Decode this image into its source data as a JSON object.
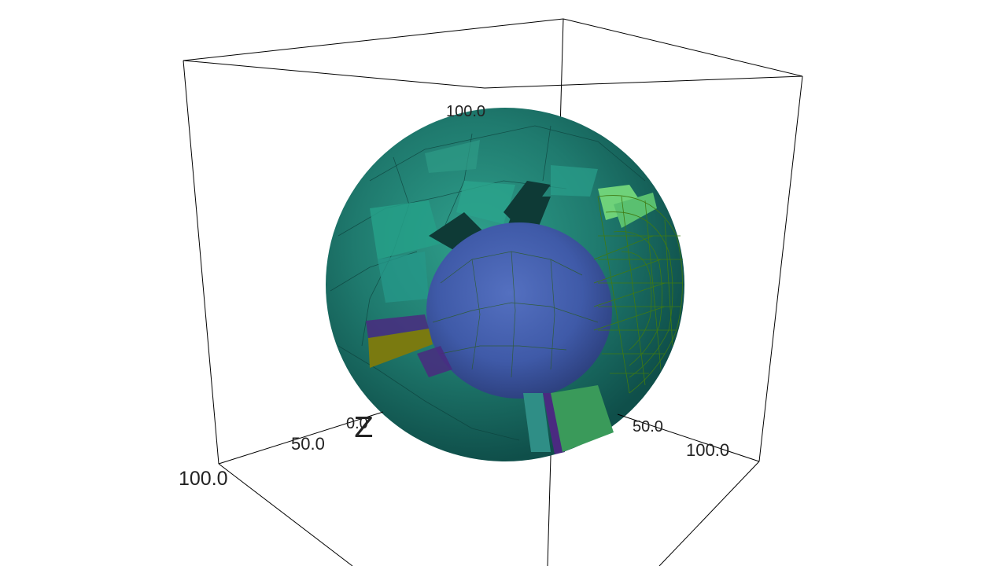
{
  "scene": {
    "type": "3d-volume-render",
    "axes": {
      "x": {
        "ticks": [
          "50.0",
          "100.0"
        ]
      },
      "y": {
        "ticks": [
          "0.0",
          "50.0",
          "100.0"
        ]
      },
      "z": {
        "label": "Z",
        "ticks": [
          "100.0"
        ]
      }
    },
    "colors": {
      "outer_shell": "#1f6f66",
      "outer_shell_light": "#2a9a86",
      "inner_core": "#3f5aa8",
      "inner_core_dark": "#2f4486",
      "wireframe": "#3f7a12",
      "highlight_green": "#6fd27a",
      "accent_olive": "#7a7a10",
      "accent_purple": "#4a2a80",
      "box_edges": "#000000"
    }
  }
}
